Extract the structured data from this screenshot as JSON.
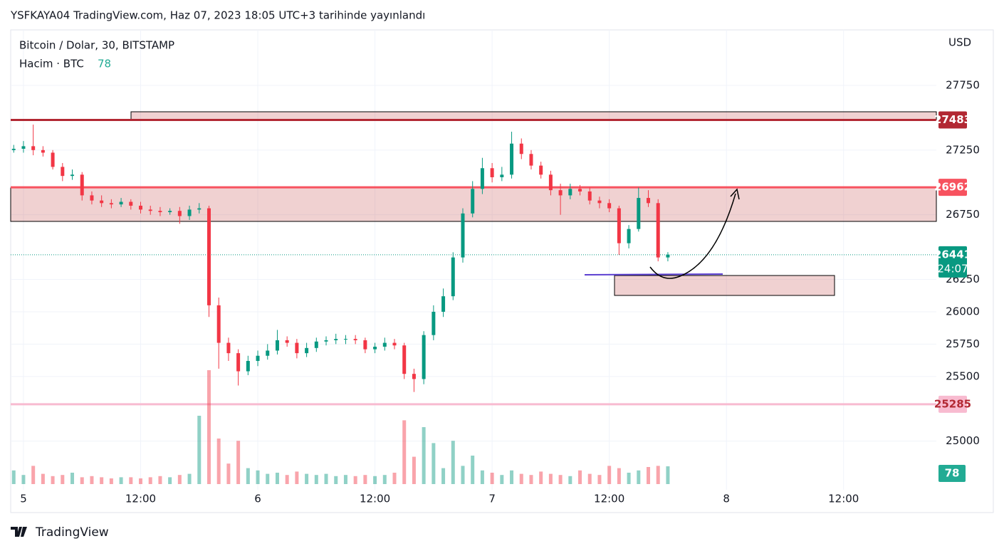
{
  "chart_data": {
    "type": "candlestick",
    "header": "YSFKAYA04 TradingView.com, Haz 07, 2023 18:05 UTC+3 tarihinde yayınlandı",
    "title": "Bitcoin / Dolar, 30, BITSTAMP",
    "volume_label": "Hacim · BTC",
    "currency": "USD",
    "footer": "TradingView",
    "countdown": "24:07",
    "up_color": "#089981",
    "down_color": "#f23645",
    "x": [
      -1,
      0,
      1,
      2,
      3,
      4,
      5,
      6,
      7,
      8,
      9,
      10,
      11,
      12,
      13,
      14,
      15,
      16,
      17,
      18,
      19,
      20,
      21,
      22,
      23,
      24,
      25,
      26,
      27,
      28,
      29,
      30,
      31,
      32,
      33,
      34,
      35,
      36,
      37,
      38,
      39,
      40,
      41,
      42,
      43,
      44,
      45,
      46,
      47,
      48,
      49,
      50,
      51,
      52,
      53,
      54,
      55,
      56,
      57,
      58,
      59,
      60,
      61,
      62,
      63,
      64,
      65,
      66
    ],
    "open": [
      27250,
      27260,
      27280,
      27250,
      27230,
      27120,
      27050,
      27060,
      26900,
      26860,
      26840,
      26830,
      26850,
      26820,
      26790,
      26780,
      26770,
      26780,
      26740,
      26790,
      26800,
      26050,
      25760,
      25680,
      25540,
      25620,
      25660,
      25700,
      25780,
      25760,
      25680,
      25720,
      25770,
      25780,
      25790,
      25790,
      25780,
      25710,
      25730,
      25760,
      25740,
      25520,
      25480,
      25820,
      26000,
      26120,
      26420,
      26760,
      26950,
      27110,
      27040,
      27060,
      27300,
      27220,
      27130,
      27060,
      26940,
      26900,
      26950,
      26930,
      26860,
      26840,
      26800,
      26530,
      26640,
      26880,
      26840,
      26420
    ],
    "high": [
      27290,
      27320,
      27447,
      27280,
      27250,
      27150,
      27100,
      27080,
      26930,
      26900,
      26870,
      26880,
      26870,
      26850,
      26820,
      26810,
      26800,
      26810,
      26820,
      26840,
      26820,
      26110,
      25800,
      25710,
      25660,
      25700,
      25750,
      25860,
      25810,
      25790,
      25760,
      25800,
      25810,
      25830,
      25820,
      25820,
      25800,
      25760,
      25800,
      25790,
      25760,
      25560,
      25850,
      26050,
      26180,
      26460,
      26800,
      27010,
      27190,
      27150,
      27120,
      27392,
      27340,
      27250,
      27160,
      27090,
      26990,
      26990,
      26980,
      26960,
      26890,
      26870,
      26820,
      26670,
      26960,
      26940,
      26870,
      26461
    ],
    "low": [
      27230,
      27230,
      27210,
      27200,
      27100,
      27010,
      27020,
      26860,
      26830,
      26810,
      26800,
      26810,
      26790,
      26760,
      26750,
      26740,
      26750,
      26680,
      26710,
      26760,
      25960,
      25560,
      25620,
      25430,
      25510,
      25580,
      25630,
      25670,
      25730,
      25640,
      25650,
      25690,
      25740,
      25750,
      25750,
      25750,
      25680,
      25680,
      25700,
      25710,
      25480,
      25380,
      25440,
      25780,
      25960,
      26090,
      26380,
      26730,
      26910,
      27000,
      27010,
      27030,
      27180,
      27100,
      27030,
      26900,
      26750,
      26870,
      26900,
      26830,
      26800,
      26770,
      26440,
      26490,
      26620,
      26810,
      26390,
      26390
    ],
    "close": [
      27260,
      27280,
      27250,
      27230,
      27120,
      27050,
      27060,
      26900,
      26860,
      26840,
      26830,
      26850,
      26820,
      26790,
      26780,
      26770,
      26780,
      26740,
      26790,
      26800,
      26050,
      25760,
      25680,
      25540,
      25620,
      25660,
      25700,
      25780,
      25760,
      25680,
      25720,
      25770,
      25780,
      25790,
      25790,
      25780,
      25710,
      25730,
      25760,
      25740,
      25520,
      25480,
      25820,
      26000,
      26120,
      26420,
      26760,
      26950,
      27110,
      27040,
      27060,
      27300,
      27220,
      27130,
      27060,
      26940,
      26900,
      26950,
      26930,
      26860,
      26840,
      26800,
      26530,
      26640,
      26880,
      26840,
      26420,
      26441
    ],
    "volume": [
      60,
      40,
      80,
      45,
      35,
      40,
      50,
      30,
      35,
      30,
      25,
      30,
      30,
      25,
      30,
      35,
      30,
      40,
      45,
      300,
      500,
      200,
      90,
      190,
      70,
      60,
      45,
      50,
      40,
      55,
      45,
      40,
      45,
      35,
      40,
      35,
      40,
      35,
      40,
      50,
      280,
      120,
      250,
      180,
      70,
      190,
      80,
      125,
      60,
      50,
      40,
      60,
      45,
      40,
      55,
      45,
      40,
      35,
      60,
      45,
      40,
      80,
      70,
      50,
      60,
      75,
      80,
      78
    ],
    "xlim": [
      -1.31,
      93.5
    ],
    "xticks": [
      {
        "value": 0,
        "label": "5"
      },
      {
        "value": 12,
        "label": "12:00"
      },
      {
        "value": 24,
        "label": "6"
      },
      {
        "value": 36,
        "label": "12:00"
      },
      {
        "value": 48,
        "label": "7"
      },
      {
        "value": 60,
        "label": "12:00"
      },
      {
        "value": 72,
        "label": "8"
      },
      {
        "value": 84,
        "label": "12:00"
      }
    ],
    "ylim": [
      24624,
      28179
    ],
    "yticks": [
      25000,
      25500,
      25750,
      26000,
      26250,
      26750,
      27250,
      27750
    ],
    "grid": true,
    "levels": [
      {
        "value": 27483,
        "color": "#b22833"
      },
      {
        "value": 26962,
        "color": "#f7525f"
      },
      {
        "value": 25285,
        "color": "#f8bbd0"
      }
    ]
  }
}
